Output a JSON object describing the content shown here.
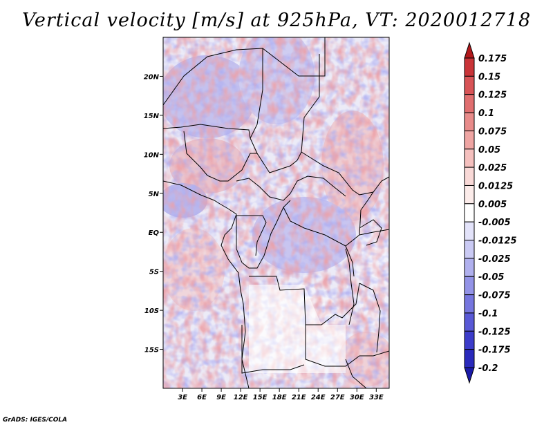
{
  "title": "Vertical velocity [m/s] at 925hPa, VT: 2020012718",
  "credit": "GrADS: IGES/COLA",
  "chart_data": {
    "type": "heatmap",
    "variable": "Vertical velocity",
    "units": "m/s",
    "level": "925hPa",
    "valid_time": "2020012718",
    "lon_range": [
      0,
      35
    ],
    "lat_range": [
      -20,
      25
    ],
    "x_ticks": [
      3,
      6,
      9,
      12,
      15,
      18,
      21,
      24,
      27,
      30,
      33
    ],
    "x_tick_labels": [
      "3E",
      "6E",
      "9E",
      "12E",
      "15E",
      "18E",
      "21E",
      "24E",
      "27E",
      "30E",
      "33E"
    ],
    "y_ticks": [
      20,
      15,
      10,
      5,
      0,
      -5,
      -10,
      -15
    ],
    "y_tick_labels": [
      "20N",
      "15N",
      "10N",
      "5N",
      "EQ",
      "5S",
      "10S",
      "15S"
    ],
    "colorbar_levels": [
      "0.175",
      "0.15",
      "0.125",
      "0.1",
      "0.075",
      "0.05",
      "0.025",
      "0.0125",
      "0.005",
      "-0.005",
      "-0.0125",
      "-0.025",
      "-0.05",
      "-0.075",
      "-0.1",
      "-0.125",
      "-0.175",
      "-0.2"
    ],
    "colorbar_colors": [
      "#b2181b",
      "#c93438",
      "#d85356",
      "#e06e6f",
      "#e88b8a",
      "#efa5a3",
      "#f5c0be",
      "#f9d9d7",
      "#fcecea",
      "#ffffff",
      "#e3e3fa",
      "#cacaf4",
      "#b0b0ee",
      "#9393e7",
      "#7676df",
      "#5959d6",
      "#3c3cca",
      "#2a2abc",
      "#1a1aa8"
    ]
  }
}
